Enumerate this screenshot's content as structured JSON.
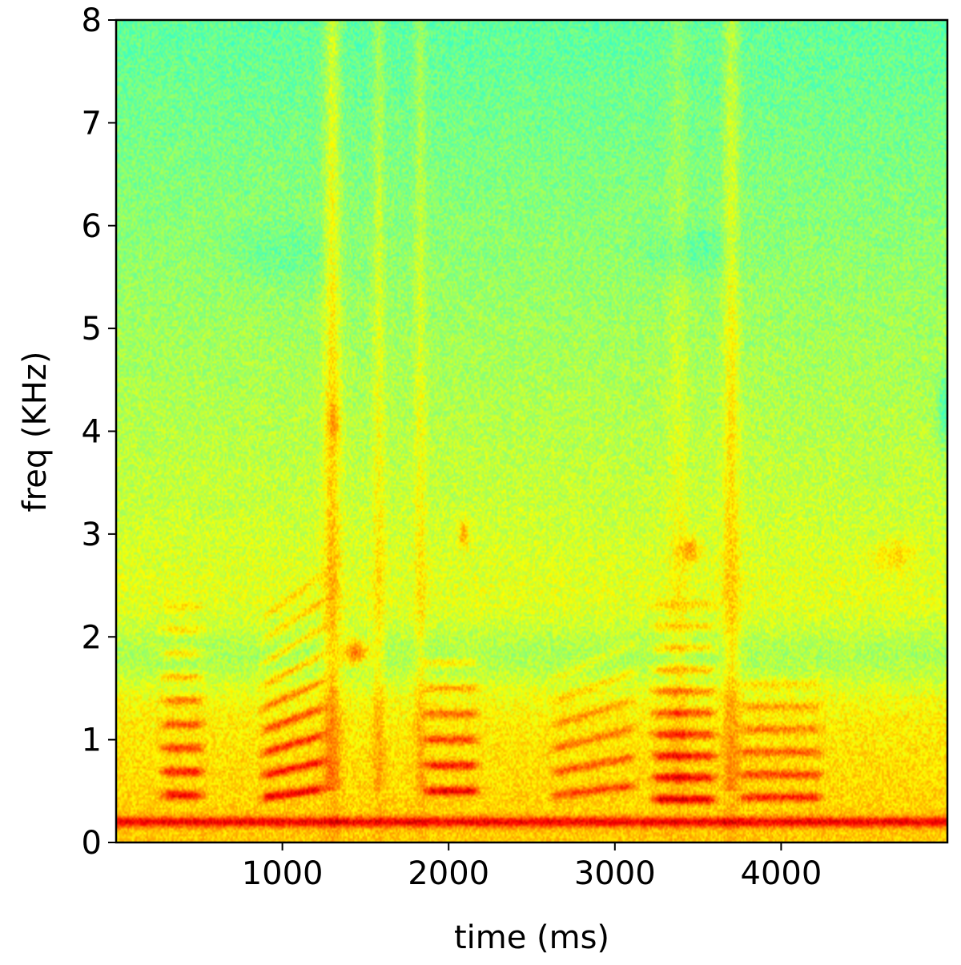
{
  "chart_data": {
    "type": "heatmap",
    "subtype": "spectrogram",
    "title": "",
    "xlabel": "time (ms)",
    "ylabel": "freq (KHz)",
    "xlim": [
      0,
      5000
    ],
    "ylim": [
      0,
      8
    ],
    "xticks": [
      1000,
      2000,
      3000,
      4000
    ],
    "xtick_labels": [
      "1000",
      "2000",
      "3000",
      "4000"
    ],
    "yticks": [
      0,
      1,
      2,
      3,
      4,
      5,
      6,
      7,
      8
    ],
    "ytick_labels": [
      "0",
      "1",
      "2",
      "3",
      "4",
      "5",
      "6",
      "7",
      "8"
    ],
    "colormap": "jet",
    "color_low": "#1e90ff",
    "color_mid": "#c8f03c",
    "color_high": "#b41400",
    "grid": false,
    "colorbar": false,
    "components": [
      {
        "kind": "hband",
        "f": 0.2,
        "width": 0.05,
        "amp": 0.35
      },
      {
        "kind": "hband",
        "f": 1.8,
        "width": 0.35,
        "amp": -0.12,
        "t0": 0,
        "t1": 5000
      },
      {
        "kind": "vstreak",
        "t": 1300,
        "w": 50,
        "amp": 0.17
      },
      {
        "kind": "vstreak",
        "t": 1580,
        "w": 35,
        "amp": 0.1
      },
      {
        "kind": "vstreak",
        "t": 1830,
        "w": 35,
        "amp": 0.09
      },
      {
        "kind": "vstreak",
        "t": 3700,
        "w": 50,
        "amp": 0.14
      },
      {
        "kind": "vstreak",
        "t": 3380,
        "w": 60,
        "amp": 0.06
      },
      {
        "kind": "blob",
        "t": 1440,
        "f": 1.85,
        "st": 80,
        "sf": 0.12,
        "amp": 0.35
      },
      {
        "kind": "blob",
        "t": 2090,
        "f": 3.0,
        "st": 30,
        "sf": 0.15,
        "amp": 0.2
      },
      {
        "kind": "blob",
        "t": 1310,
        "f": 4.1,
        "st": 40,
        "sf": 0.2,
        "amp": 0.12
      },
      {
        "kind": "blob",
        "t": 3450,
        "f": 2.85,
        "st": 60,
        "sf": 0.12,
        "amp": 0.2
      },
      {
        "kind": "blob",
        "t": 4690,
        "f": 2.8,
        "st": 120,
        "sf": 0.15,
        "amp": 0.12
      },
      {
        "kind": "blob",
        "t": 4980,
        "f": 4.2,
        "st": 40,
        "sf": 0.35,
        "amp": -0.15
      },
      {
        "kind": "blob",
        "t": 3480,
        "f": 5.75,
        "st": 250,
        "sf": 0.25,
        "amp": -0.08
      },
      {
        "kind": "blob",
        "t": 1000,
        "f": 5.7,
        "st": 300,
        "sf": 0.3,
        "amp": -0.06
      },
      {
        "kind": "harmonics",
        "t0": 300,
        "t1": 500,
        "f0": 0.23,
        "slope": 0,
        "n": 9,
        "amp": 0.38
      },
      {
        "kind": "harmonics",
        "t0": 900,
        "t1": 1230,
        "f0": 0.22,
        "slope": 0.00012,
        "n": 9,
        "amp": 0.4
      },
      {
        "kind": "harmonics",
        "t0": 1880,
        "t1": 2150,
        "f0": 0.25,
        "slope": 0,
        "n": 6,
        "amp": 0.42
      },
      {
        "kind": "harmonics",
        "t0": 2650,
        "t1": 3100,
        "f0": 0.23,
        "slope": 0.0001,
        "n": 6,
        "amp": 0.27
      },
      {
        "kind": "harmonics",
        "t0": 3250,
        "t1": 3580,
        "f0": 0.21,
        "slope": 0,
        "n": 10,
        "amp": 0.42
      },
      {
        "kind": "harmonics",
        "t0": 3780,
        "t1": 4220,
        "f0": 0.22,
        "slope": 0,
        "n": 6,
        "amp": 0.32
      }
    ]
  }
}
